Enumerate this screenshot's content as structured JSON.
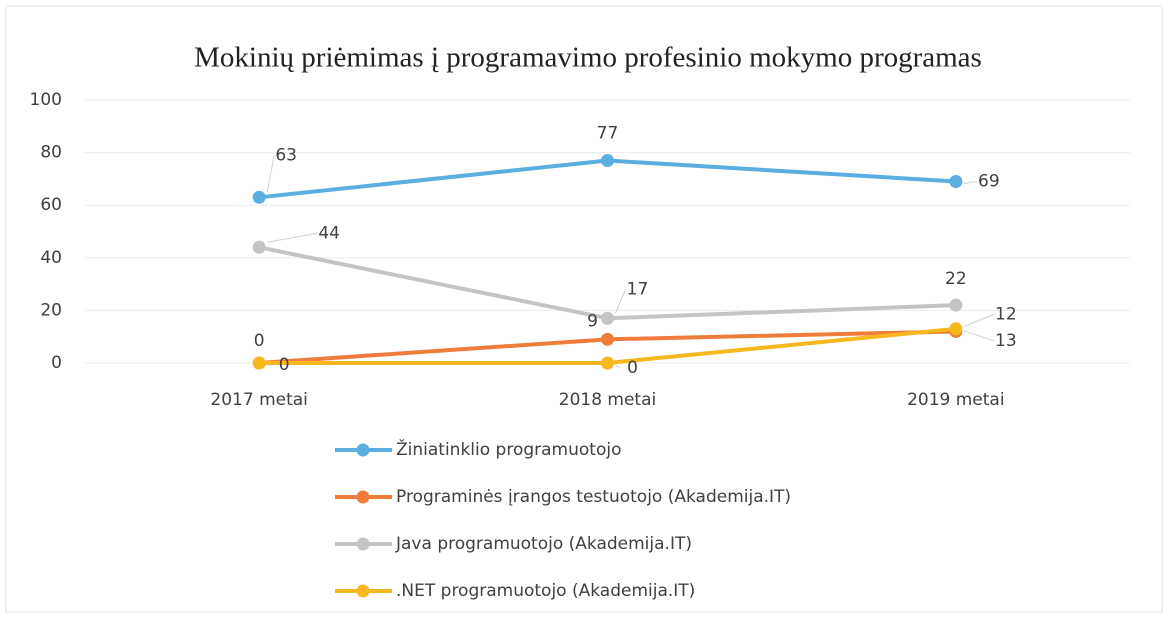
{
  "chart_data": {
    "type": "line",
    "title": "Mokinių priėmimas į programavimo profesinio mokymo programas",
    "categories": [
      "2017 metai",
      "2018 metai",
      "2019 metai"
    ],
    "series": [
      {
        "name": "Žiniatinklio programuotojo",
        "color": "#5aaee0",
        "values": [
          63,
          77,
          69
        ]
      },
      {
        "name": "Programinės įrangos testuotojo (Akademija.IT)",
        "color": "#ee7d3b",
        "values": [
          0,
          9,
          12
        ]
      },
      {
        "name": "Java programuotojo (Akademija.IT)",
        "color": "#c4c4c4",
        "values": [
          44,
          17,
          22
        ]
      },
      {
        "name": ".NET programuotojo (Akademija.IT)",
        "color": "#f7b81f",
        "values": [
          0,
          0,
          13
        ]
      }
    ],
    "ylim": [
      0,
      100
    ],
    "yticks": [
      0,
      20,
      40,
      60,
      80,
      100
    ],
    "grid": true,
    "legend": "bottom"
  }
}
